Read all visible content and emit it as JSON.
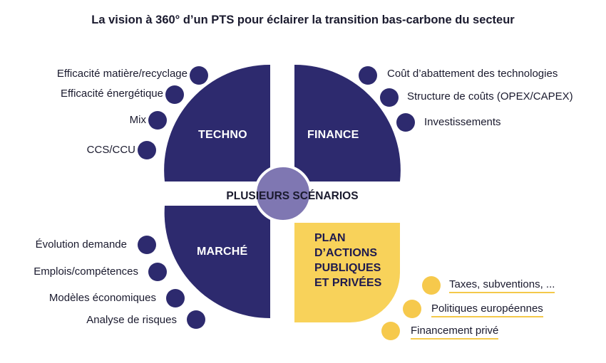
{
  "title": "La vision à 360° d’un PTS pour éclairer la transition bas-carbone du secteur",
  "center_label": "PLUSIEURS SCÉNARIOS",
  "quadrants": {
    "techno": "TECHNO",
    "finance": "FINANCE",
    "marche": "MARCHÉ",
    "plan": "PLAN\nD’ACTIONS\nPUBLIQUES\nET PRIVÉES"
  },
  "techno_items": [
    "Efficacité matière/recyclage",
    "Efficacité énergétique",
    "Mix",
    "CCS/CCU"
  ],
  "finance_items": [
    "Coût d’abattement des technologies",
    "Structure de coûts (OPEX/CAPEX)",
    "Investissements"
  ],
  "marche_items": [
    "Évolution demande",
    "Emplois/compétences",
    "Modèles économiques",
    "Analyse de risques"
  ],
  "plan_items": [
    "Taxes, subventions, ...",
    "Politiques européennes",
    "Financement privé"
  ],
  "colors": {
    "navy": "#2d2a6e",
    "yellow": "#f8d25a",
    "dot_yellow": "#f6c94c",
    "center": "#7f77b2"
  }
}
